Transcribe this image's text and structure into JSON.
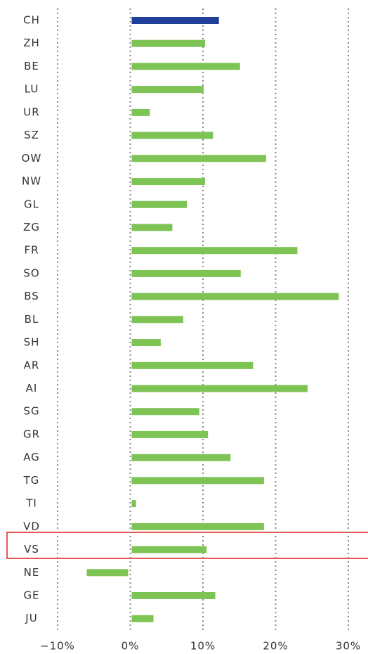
{
  "chart_data": {
    "type": "bar",
    "orientation": "horizontal",
    "categories": [
      "CH",
      "ZH",
      "BE",
      "LU",
      "UR",
      "SZ",
      "OW",
      "NW",
      "GL",
      "ZG",
      "FR",
      "SO",
      "BS",
      "BL",
      "SH",
      "AR",
      "AI",
      "SG",
      "GR",
      "AG",
      "TG",
      "TI",
      "VD",
      "VS",
      "NE",
      "GE",
      "JU"
    ],
    "values": [
      12.0,
      10.1,
      14.9,
      9.9,
      2.5,
      11.2,
      18.5,
      10.1,
      7.6,
      5.6,
      22.8,
      15.0,
      28.5,
      7.1,
      4.0,
      16.7,
      24.2,
      9.3,
      10.5,
      13.6,
      18.2,
      0.6,
      18.2,
      10.3,
      -5.7,
      11.5,
      3.0
    ],
    "colors": [
      "#1f3f9a",
      "#7dc455",
      "#7dc455",
      "#7dc455",
      "#7dc455",
      "#7dc455",
      "#7dc455",
      "#7dc455",
      "#7dc455",
      "#7dc455",
      "#7dc455",
      "#7dc455",
      "#7dc455",
      "#7dc455",
      "#7dc455",
      "#7dc455",
      "#7dc455",
      "#7dc455",
      "#7dc455",
      "#7dc455",
      "#7dc455",
      "#7dc455",
      "#7dc455",
      "#7dc455",
      "#7dc455",
      "#7dc455",
      "#7dc455"
    ],
    "xlim": [
      -10,
      30
    ],
    "xticks": [
      {
        "value": -10,
        "label": "−10%"
      },
      {
        "value": 0,
        "label": "0%"
      },
      {
        "value": 10,
        "label": "10%"
      },
      {
        "value": 20,
        "label": "20%"
      },
      {
        "value": 30,
        "label": "30%"
      }
    ],
    "grid": true
  }
}
